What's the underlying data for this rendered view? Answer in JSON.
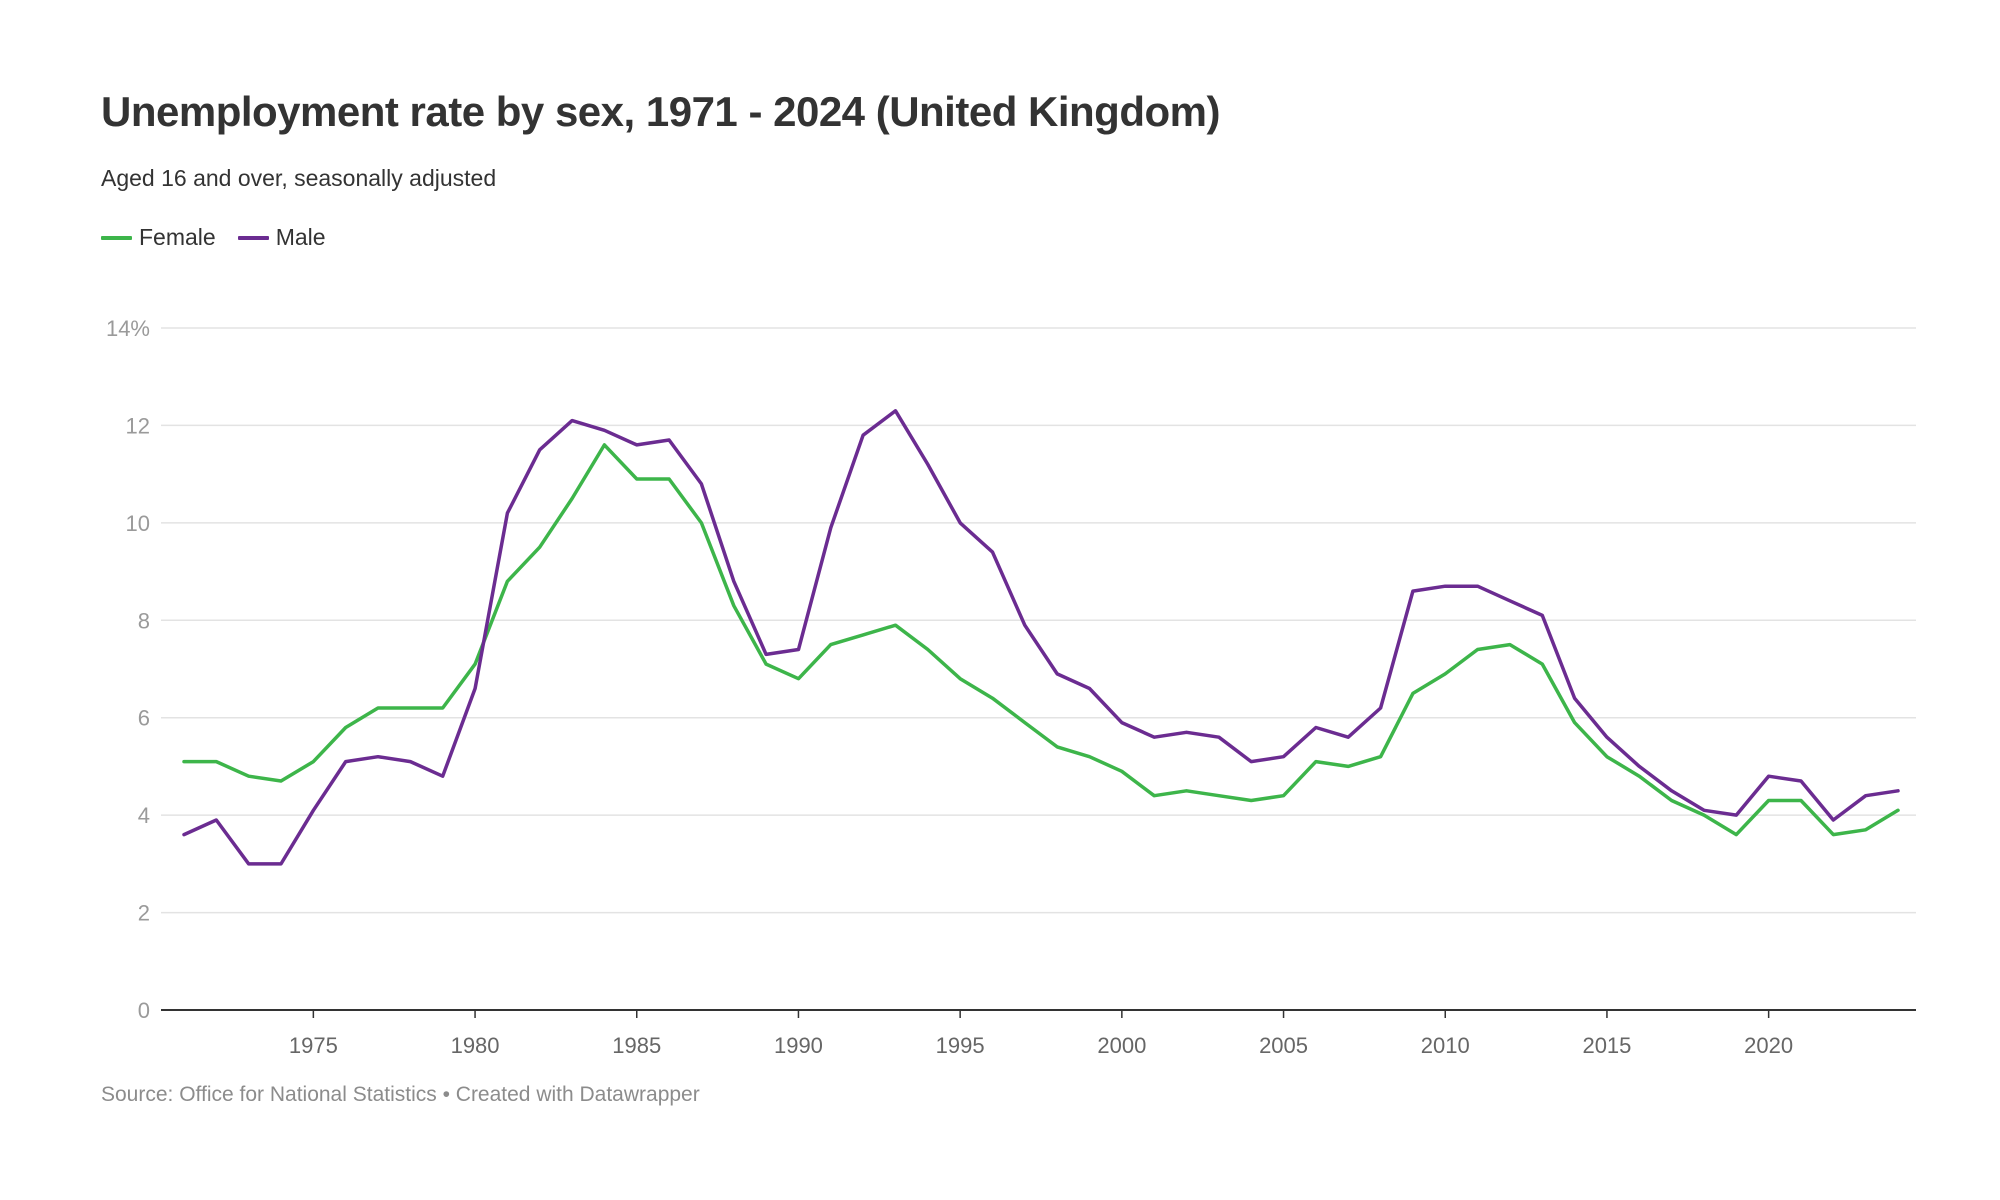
{
  "title": "Unemployment rate by sex, 1971 - 2024 (United Kingdom)",
  "subtitle": "Aged 16 and over, seasonally adjusted",
  "source": "Source: Office for National Statistics • Created with Datawrapper",
  "colors": {
    "female": "#3db54a",
    "male": "#6b2c91",
    "grid": "#e3e3e3",
    "axis": "#333333",
    "tick_text_y": "#9a9a9a",
    "tick_text_x": "#666666"
  },
  "chart_data": {
    "type": "line",
    "title": "Unemployment rate by sex, 1971 - 2024 (United Kingdom)",
    "subtitle": "Aged 16 and over, seasonally adjusted",
    "xlabel": "",
    "ylabel": "",
    "xlim": [
      1971,
      2024
    ],
    "ylim": [
      0,
      14
    ],
    "grid": true,
    "legend_position": "top-left",
    "x_ticks": [
      1975,
      1980,
      1985,
      1990,
      1995,
      2000,
      2005,
      2010,
      2015,
      2020
    ],
    "y_ticks": [
      0,
      2,
      4,
      6,
      8,
      10,
      12,
      14
    ],
    "y_tick_labels": [
      "0",
      "2",
      "4",
      "6",
      "8",
      "10",
      "12",
      "14%"
    ],
    "x": [
      1971,
      1972,
      1973,
      1974,
      1975,
      1976,
      1977,
      1978,
      1979,
      1980,
      1981,
      1982,
      1983,
      1984,
      1985,
      1986,
      1987,
      1988,
      1989,
      1990,
      1991,
      1992,
      1993,
      1994,
      1995,
      1996,
      1997,
      1998,
      1999,
      2000,
      2001,
      2002,
      2003,
      2004,
      2005,
      2006,
      2007,
      2008,
      2009,
      2010,
      2011,
      2012,
      2013,
      2014,
      2015,
      2016,
      2017,
      2018,
      2019,
      2020,
      2021,
      2022,
      2023,
      2024
    ],
    "series": [
      {
        "name": "Female",
        "color": "#3db54a",
        "values": [
          5.1,
          5.1,
          4.8,
          4.7,
          5.1,
          5.8,
          6.2,
          6.2,
          6.2,
          7.1,
          8.8,
          9.5,
          10.5,
          11.6,
          10.9,
          10.9,
          10.0,
          8.3,
          7.1,
          6.8,
          7.5,
          7.7,
          7.9,
          7.4,
          6.8,
          6.4,
          5.9,
          5.4,
          5.2,
          4.9,
          4.4,
          4.5,
          4.4,
          4.3,
          4.4,
          5.1,
          5.0,
          5.2,
          6.5,
          6.9,
          7.4,
          7.5,
          7.1,
          5.9,
          5.2,
          4.8,
          4.3,
          4.0,
          3.6,
          4.3,
          4.3,
          3.6,
          3.7,
          4.1
        ]
      },
      {
        "name": "Male",
        "color": "#6b2c91",
        "values": [
          3.6,
          3.9,
          3.0,
          3.0,
          4.1,
          5.1,
          5.2,
          5.1,
          4.8,
          6.6,
          10.2,
          11.5,
          12.1,
          11.9,
          11.6,
          11.7,
          10.8,
          8.8,
          7.3,
          7.4,
          9.9,
          11.8,
          12.3,
          11.2,
          10.0,
          9.4,
          7.9,
          6.9,
          6.6,
          5.9,
          5.6,
          5.7,
          5.6,
          5.1,
          5.2,
          5.8,
          5.6,
          6.2,
          8.6,
          8.7,
          8.7,
          8.4,
          8.1,
          6.4,
          5.6,
          5.0,
          4.5,
          4.1,
          4.0,
          4.8,
          4.7,
          3.9,
          4.4,
          4.5
        ]
      }
    ]
  }
}
